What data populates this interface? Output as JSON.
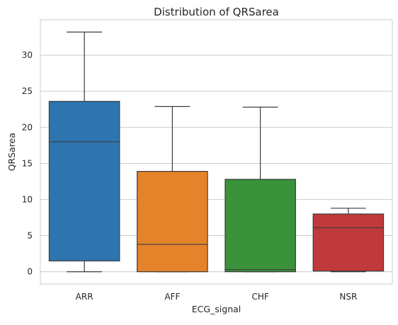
{
  "chart_data": {
    "type": "box",
    "title": "Distribution of QRSarea",
    "xlabel": "ECG_signal",
    "ylabel": "QRSarea",
    "ylim": [
      -1.7,
      34.9
    ],
    "yticks": [
      0,
      5,
      10,
      15,
      20,
      25,
      30
    ],
    "grid": "horizontal",
    "categories": [
      "ARR",
      "AFF",
      "CHF",
      "NSR"
    ],
    "boxes": [
      {
        "category": "ARR",
        "whisker_low": 0.0,
        "q1": 1.5,
        "median": 18.0,
        "q3": 23.6,
        "whisker_high": 33.2,
        "color": "#2e75b0"
      },
      {
        "category": "AFF",
        "whisker_low": 0.0,
        "q1": 0.0,
        "median": 3.8,
        "q3": 13.9,
        "whisker_high": 22.9,
        "color": "#e5832a"
      },
      {
        "category": "CHF",
        "whisker_low": 0.0,
        "q1": 0.0,
        "median": 0.3,
        "q3": 12.8,
        "whisker_high": 22.8,
        "color": "#3a923a"
      },
      {
        "category": "NSR",
        "whisker_low": 0.0,
        "q1": 0.1,
        "median": 6.1,
        "q3": 8.0,
        "whisker_high": 8.8,
        "color": "#c0393b"
      }
    ]
  }
}
